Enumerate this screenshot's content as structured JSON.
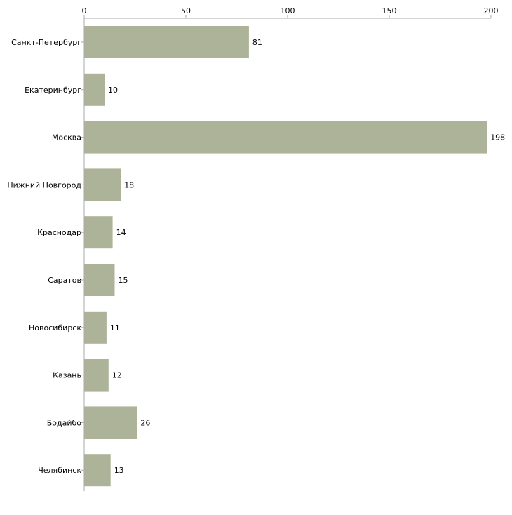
{
  "chart_data": {
    "type": "bar",
    "orientation": "horizontal",
    "title": "",
    "xlabel": "",
    "ylabel": "",
    "xlim": [
      0,
      200
    ],
    "ticks": [
      0,
      50,
      100,
      150,
      200
    ],
    "tick_labels": [
      "0",
      "50",
      "100",
      "150",
      "200"
    ],
    "grid": false,
    "categories": [
      "Санкт-Петербург",
      "Екатеринбург",
      "Москва",
      "Нижний Новгород",
      "Краснодар",
      "Саратов",
      "Новосибирск",
      "Казань",
      "Бодайбо",
      "Челябинск"
    ],
    "values": [
      81,
      10,
      198,
      18,
      14,
      15,
      11,
      12,
      26,
      13
    ],
    "value_labels": [
      "81",
      "10",
      "198",
      "18",
      "14",
      "15",
      "11",
      "12",
      "26",
      "13"
    ],
    "bar_color": "#adb398",
    "axis_color": "#aaaaaa"
  }
}
